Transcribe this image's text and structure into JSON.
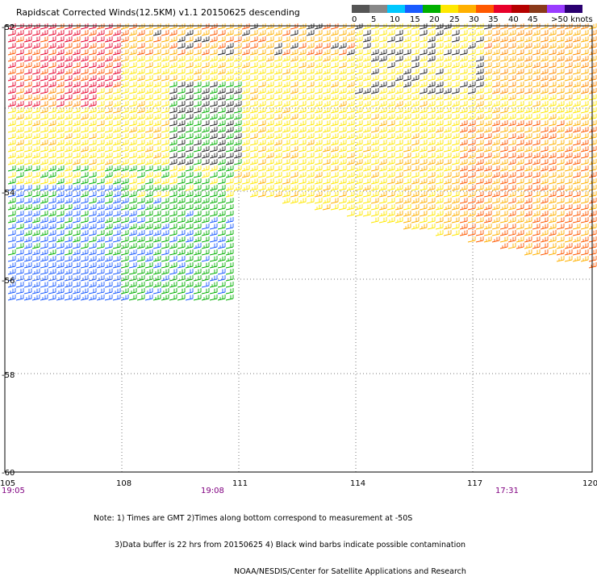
{
  "title": "Rapidscat Corrected Winds(12.5KM) v1.1 20150625 descending",
  "legend": {
    "labels": [
      "0",
      "5",
      "10",
      "15",
      "20",
      "25",
      "30",
      "35",
      "40",
      "45",
      ">50 knots"
    ],
    "colors": [
      "#555555",
      "#888888",
      "#00c8ff",
      "#1a5bff",
      "#00b000",
      "#ffe800",
      "#ffb000",
      "#ff5800",
      "#e8002a",
      "#b50000",
      "#8a3a1a",
      "#9a3cff",
      "#2a0070"
    ]
  },
  "axes": {
    "lon_labels": [
      "105",
      "108",
      "111",
      "114",
      "117",
      "120"
    ],
    "lat_labels": [
      "-52",
      "-54",
      "-56",
      "-58",
      "-60"
    ],
    "times": [
      "19:05",
      "19:08",
      "17:31"
    ]
  },
  "notes": [
    "Note: 1) Times are GMT 2)Times along bottom correspond to measurement at -50S",
    "3)Data buffer is 22 hrs from 20150625 4) Black wind barbs indicate possible contamination",
    "NOAA/NESDIS/Center for Satellite Applications and Research"
  ],
  "colors": {
    "time_label": "#800080",
    "grid": "#888888",
    "frame": "#000000"
  }
}
